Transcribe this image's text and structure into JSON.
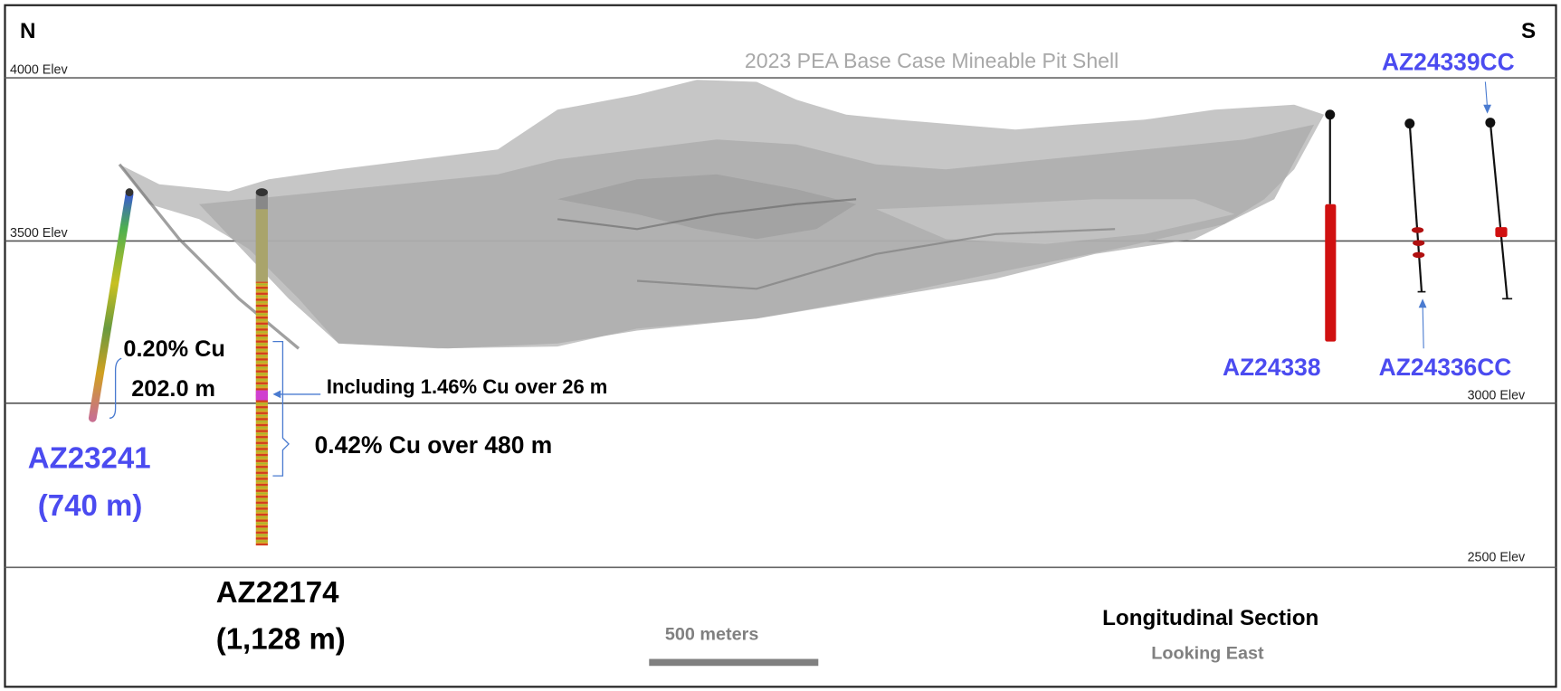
{
  "compass": {
    "north": "N",
    "south": "S"
  },
  "pit_title": "2023 PEA Base Case Mineable Pit Shell",
  "elevations": [
    "4000 Elev",
    "3500 Elev",
    "3000 Elev",
    "2500 Elev"
  ],
  "holes": {
    "az23241": {
      "name": "AZ23241",
      "length": "(740 m)",
      "grade": "0.20% Cu",
      "interval": "202.0 m"
    },
    "az22174": {
      "name": "AZ22174",
      "length": "(1,128 m)",
      "including": "Including 1.46% Cu over 26 m",
      "interval": "0.42% Cu over 480 m"
    },
    "az24338": {
      "name": "AZ24338"
    },
    "az24336cc": {
      "name": "AZ24336CC"
    },
    "az24339cc": {
      "name": "AZ24339CC"
    }
  },
  "scale_bar": {
    "label": "500 meters"
  },
  "section": {
    "title": "Longitudinal Section",
    "subtitle": "Looking East"
  },
  "colors": {
    "hole_label": "#4b4bf0",
    "mineralized": "#d01010",
    "pit": "#9a9a9a",
    "callout": "#4a7bd0"
  }
}
